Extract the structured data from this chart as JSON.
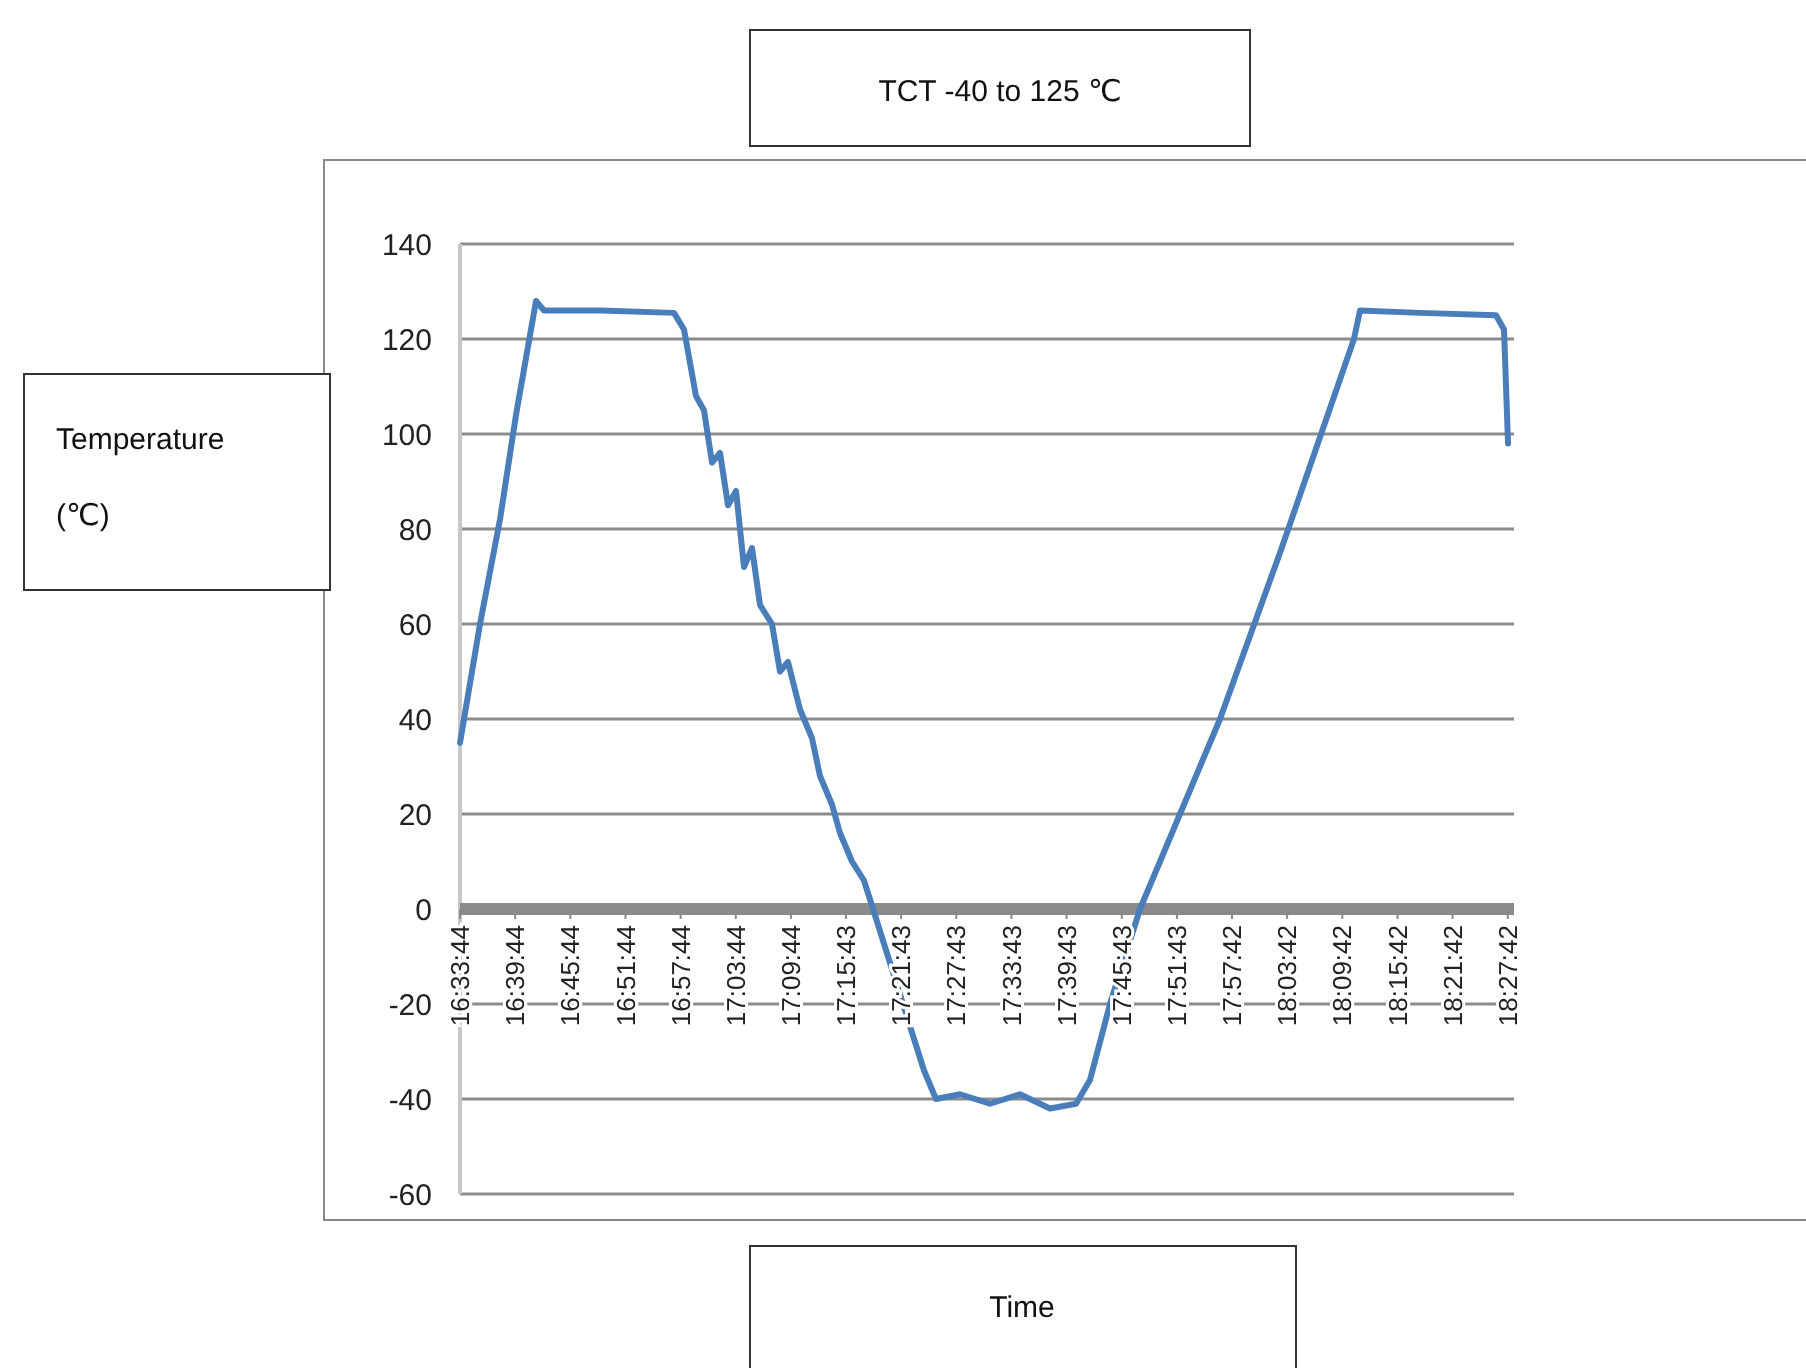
{
  "chart_data": {
    "type": "line",
    "title": "TCT -40 to 125 ℃",
    "xlabel": "Time",
    "ylabel": "Temperature (℃)",
    "xlim": [
      16.5622,
      18.473
    ],
    "ylim": [
      -60,
      140
    ],
    "yticks": [
      -60,
      -40,
      -20,
      0,
      20,
      40,
      60,
      80,
      100,
      120,
      140
    ],
    "xticks": [
      {
        "value": 16.5622,
        "label": "16:33:44"
      },
      {
        "value": 16.6622,
        "label": "16:39:44"
      },
      {
        "value": 16.7622,
        "label": "16:45:44"
      },
      {
        "value": 16.8622,
        "label": "16:51:44"
      },
      {
        "value": 16.9622,
        "label": "16:57:44"
      },
      {
        "value": 17.0622,
        "label": "17:03:44"
      },
      {
        "value": 17.1622,
        "label": "17:09:44"
      },
      {
        "value": 17.2619,
        "label": "17:15:43"
      },
      {
        "value": 17.3619,
        "label": "17:21:43"
      },
      {
        "value": 17.4619,
        "label": "17:27:43"
      },
      {
        "value": 17.5619,
        "label": "17:33:43"
      },
      {
        "value": 17.6619,
        "label": "17:39:43"
      },
      {
        "value": 17.7619,
        "label": "17:45:43"
      },
      {
        "value": 17.8619,
        "label": "17:51:43"
      },
      {
        "value": 17.9617,
        "label": "17:57:42"
      },
      {
        "value": 18.0617,
        "label": "18:03:42"
      },
      {
        "value": 18.1617,
        "label": "18:09:42"
      },
      {
        "value": 18.2617,
        "label": "18:15:42"
      },
      {
        "value": 18.3617,
        "label": "18:21:42"
      },
      {
        "value": 18.4617,
        "label": "18:27:42"
      }
    ],
    "grid": "y",
    "marker": "none",
    "line_style": "solid",
    "series": [
      {
        "color": "#4a7ebb",
        "x": [
          16.5622,
          16.5985,
          16.6347,
          16.6637,
          16.7,
          16.7145,
          16.816,
          16.9502,
          16.9683,
          16.99,
          17.0045,
          17.0191,
          17.0336,
          17.0481,
          17.0626,
          17.0771,
          17.0916,
          17.1061,
          17.1278,
          17.1423,
          17.1568,
          17.1786,
          17.2003,
          17.2148,
          17.2366,
          17.2511,
          17.2729,
          17.2946,
          17.3164,
          17.3381,
          17.3599,
          17.3816,
          17.4034,
          17.4251,
          17.4687,
          17.523,
          17.5774,
          17.6318,
          17.679,
          17.7043,
          17.7406,
          17.795,
          17.8675,
          17.94,
          18.0488,
          18.1829,
          18.1938,
          18.3026,
          18.4404,
          18.4549,
          18.4622
        ],
        "values": [
          35,
          60,
          82,
          104,
          128,
          126,
          126,
          125.5,
          122,
          108,
          105,
          94,
          96,
          85,
          88,
          72,
          76,
          64,
          60,
          50,
          52,
          42,
          36,
          28,
          22,
          16,
          10,
          6,
          -2,
          -10,
          -18,
          -26,
          -34,
          -40,
          -39,
          -41,
          -39,
          -42,
          -41,
          -36,
          -20,
          0,
          20,
          40,
          75,
          120,
          126,
          125.5,
          125,
          122,
          98
        ]
      }
    ]
  }
}
